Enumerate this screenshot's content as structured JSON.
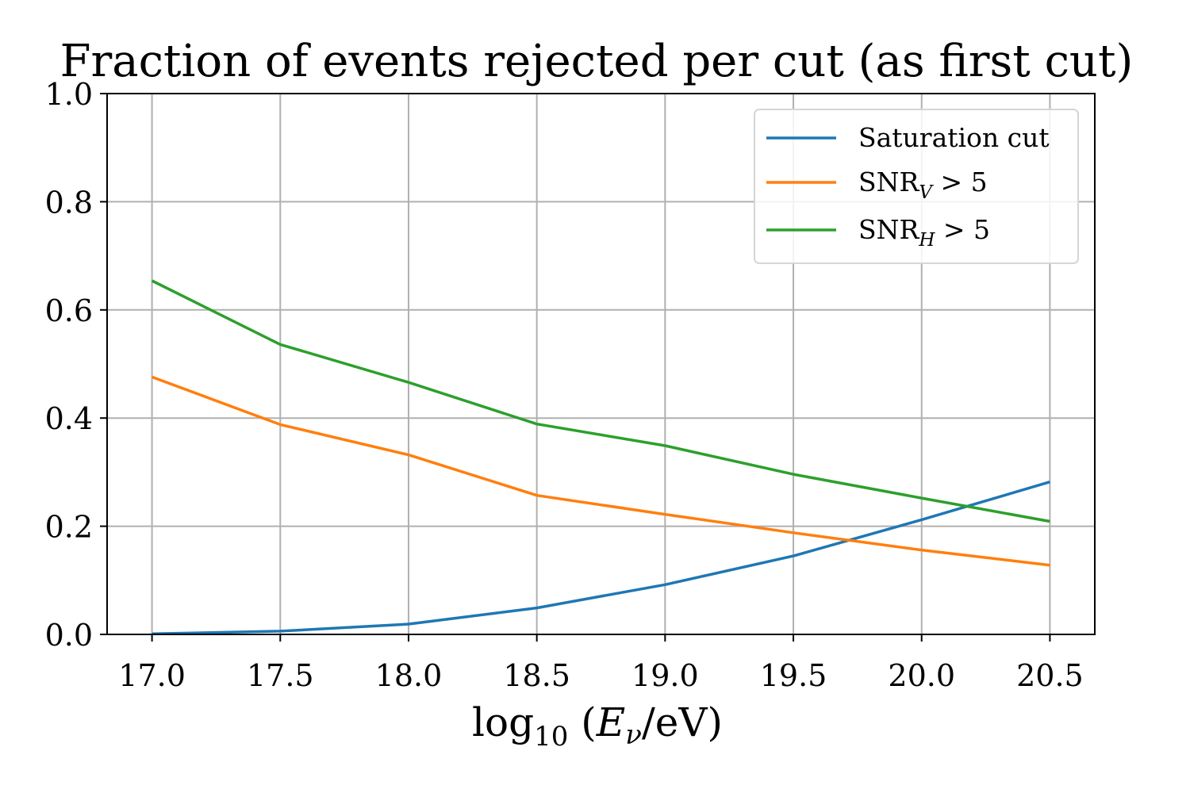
{
  "chart_data": {
    "type": "line",
    "title": "Fraction of events rejected per cut (as first cut)",
    "xlabel": {
      "prefix": "log",
      "sub": "10",
      "open": " (",
      "var": "E",
      "var_sub": "ν",
      "rest": "/eV)"
    },
    "ylabel": "",
    "x": [
      17.0,
      17.5,
      18.0,
      18.5,
      19.0,
      19.5,
      20.0,
      20.5
    ],
    "xlim": [
      16.825,
      20.675
    ],
    "ylim": [
      0.0,
      1.0
    ],
    "x_ticks": [
      17.0,
      17.5,
      18.0,
      18.5,
      19.0,
      19.5,
      20.0,
      20.5
    ],
    "x_tick_labels": [
      "17.0",
      "17.5",
      "18.0",
      "18.5",
      "19.0",
      "19.5",
      "20.0",
      "20.5"
    ],
    "y_ticks": [
      0.0,
      0.2,
      0.4,
      0.6,
      0.8,
      1.0
    ],
    "y_tick_labels": [
      "0.0",
      "0.2",
      "0.4",
      "0.6",
      "0.8",
      "1.0"
    ],
    "grid": true,
    "legend_position": "top-right",
    "series": [
      {
        "name": "Saturation cut",
        "label_main": "Saturation cut",
        "label_sub": "",
        "label_rest": "",
        "color": "#1f77b4",
        "values": [
          0.001,
          0.006,
          0.019,
          0.049,
          0.092,
          0.145,
          0.212,
          0.282
        ]
      },
      {
        "name": "SNR_V > 5",
        "label_main": "SNR",
        "label_sub": "V",
        "label_rest": " > 5",
        "color": "#ff7f0e",
        "values": [
          0.476,
          0.388,
          0.332,
          0.257,
          0.222,
          0.188,
          0.156,
          0.128
        ]
      },
      {
        "name": "SNR_H > 5",
        "label_main": "SNR",
        "label_sub": "H",
        "label_rest": " > 5",
        "color": "#2ca02c",
        "values": [
          0.654,
          0.536,
          0.466,
          0.389,
          0.349,
          0.296,
          0.252,
          0.209
        ]
      }
    ]
  }
}
